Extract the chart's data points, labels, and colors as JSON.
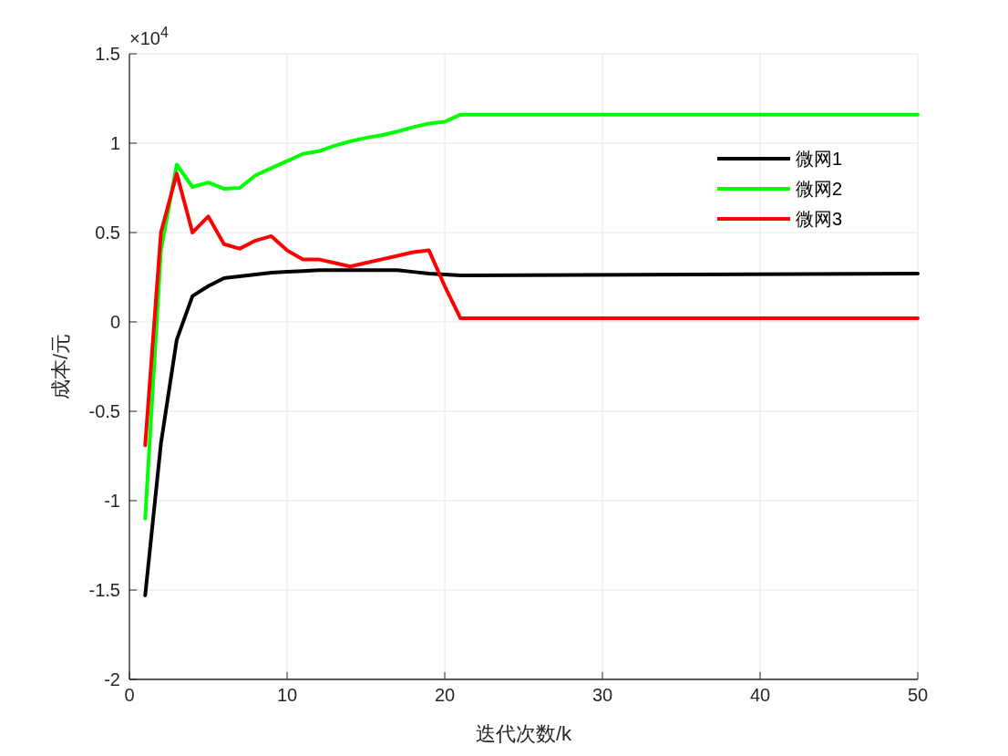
{
  "chart_data": {
    "type": "line",
    "xlabel": "迭代次数/k",
    "ylabel": "成本/元",
    "annotations": [
      "×10$^{4}$"
    ],
    "x": [
      1,
      2,
      3,
      4,
      5,
      6,
      7,
      8,
      9,
      10,
      11,
      12,
      13,
      14,
      15,
      16,
      17,
      18,
      19,
      20,
      21,
      50
    ],
    "series": [
      {
        "name": "微网1",
        "color": "#000000",
        "values": [
          -1.53,
          -0.68,
          -0.1,
          0.145,
          0.2,
          0.245,
          0.255,
          0.265,
          0.275,
          0.28,
          0.285,
          0.29,
          0.29,
          0.29,
          0.29,
          0.29,
          0.29,
          0.28,
          0.27,
          0.265,
          0.26,
          0.27
        ]
      },
      {
        "name": "微网2",
        "color": "#00ff00",
        "values": [
          -1.1,
          0.4,
          0.88,
          0.755,
          0.78,
          0.745,
          0.75,
          0.82,
          0.86,
          0.9,
          0.94,
          0.955,
          0.985,
          1.01,
          1.03,
          1.045,
          1.065,
          1.09,
          1.11,
          1.12,
          1.16,
          1.16
        ]
      },
      {
        "name": "微网3",
        "color": "#ff0000",
        "values": [
          -0.69,
          0.5,
          0.83,
          0.5,
          0.59,
          0.435,
          0.41,
          0.455,
          0.48,
          0.4,
          0.35,
          0.35,
          0.33,
          0.31,
          0.33,
          0.35,
          0.37,
          0.39,
          0.4,
          0.2,
          0.02,
          0.02
        ]
      }
    ],
    "xlim": [
      0,
      50
    ],
    "xticks": [
      0,
      10,
      20,
      30,
      40,
      50
    ],
    "ylim": [
      -2,
      1.5
    ],
    "yticks": [
      -2,
      -1.5,
      -1,
      -0.5,
      0,
      0.5,
      1,
      1.5
    ],
    "grid": true,
    "legend": "top right",
    "line_style": "solid",
    "marker": "none"
  }
}
